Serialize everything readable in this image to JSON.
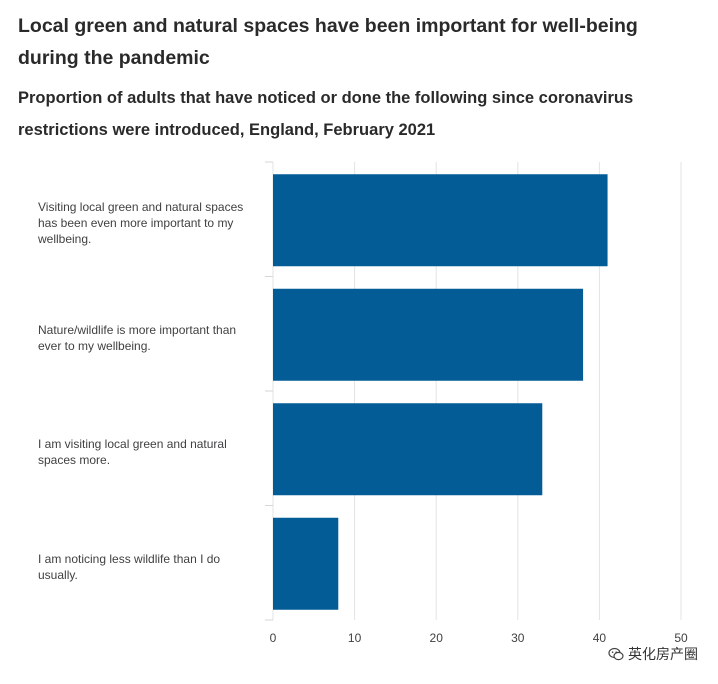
{
  "title": "Local green and natural spaces have been important for well-being during the pandemic",
  "subtitle": "Proportion of adults that have noticed or done the following since coronavirus restrictions were introduced, England, February 2021",
  "chart_data": {
    "type": "bar",
    "orientation": "horizontal",
    "categories": [
      "Visiting local green and natural spaces has been even more important to my wellbeing.",
      "Nature/wildlife is more important than ever to my wellbeing.",
      "I am visiting local green and natural spaces more.",
      "I am noticing less wildlife than I do usually."
    ],
    "values": [
      41,
      38,
      33,
      8
    ],
    "xlim": [
      0,
      50
    ],
    "xticks": [
      0,
      10,
      20,
      30,
      40,
      50
    ],
    "grid": true,
    "bar_color": "#045c96",
    "legend": "none"
  },
  "watermark": {
    "text": "英化房产圈",
    "icon": "wechat-icon"
  }
}
